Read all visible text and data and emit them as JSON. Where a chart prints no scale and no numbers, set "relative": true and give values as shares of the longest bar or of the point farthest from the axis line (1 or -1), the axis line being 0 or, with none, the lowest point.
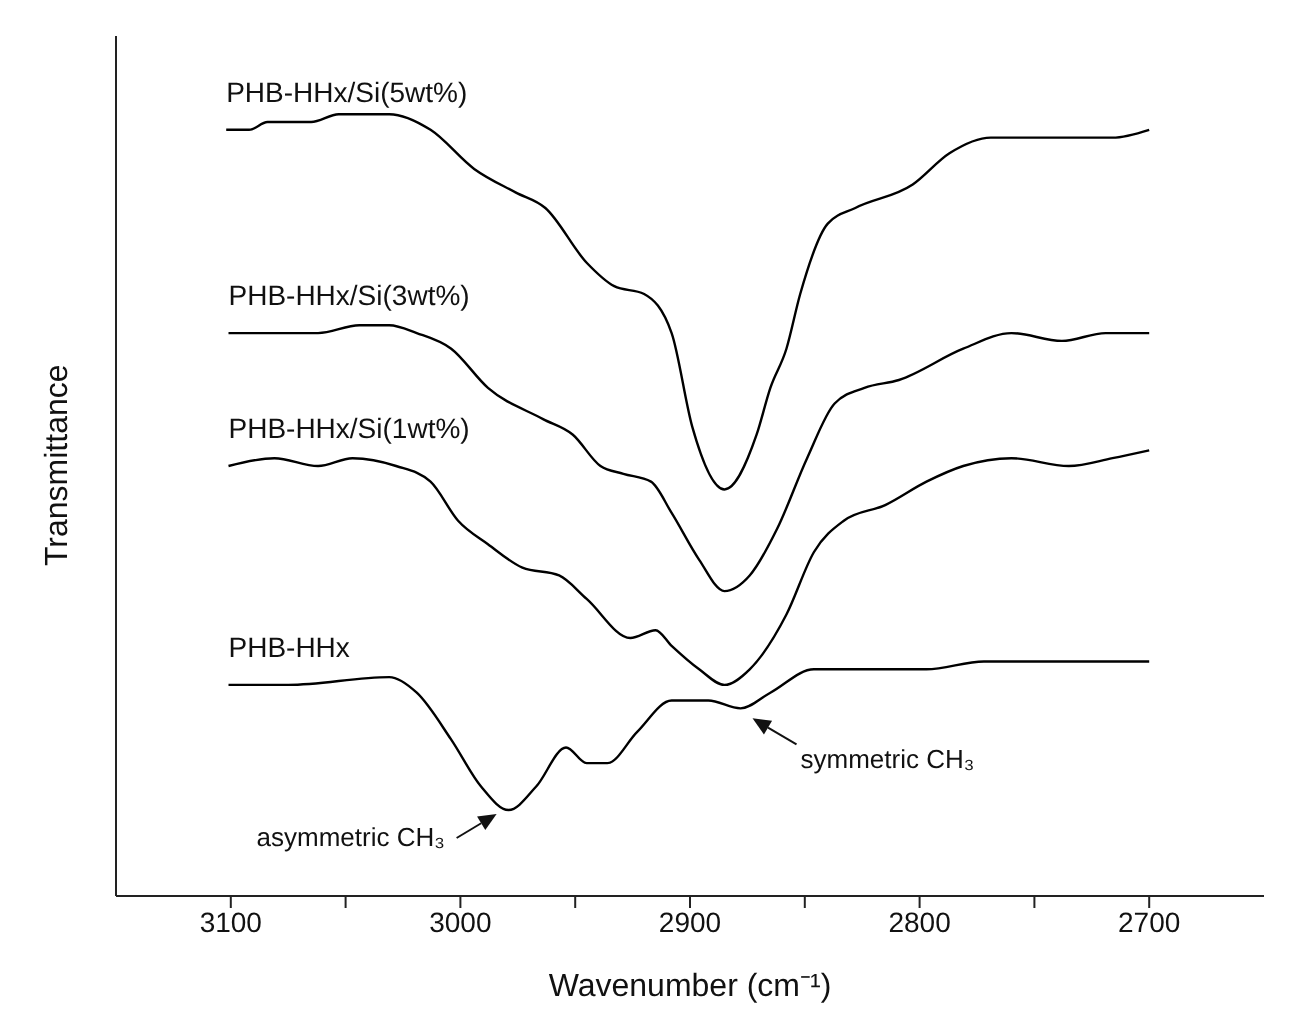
{
  "chart_data": {
    "type": "line",
    "relative": true,
    "xlabel": "Wavenumber (cm⁻¹)",
    "ylabel": "Transmittance",
    "xlim": [
      3150,
      2650
    ],
    "xticks": [
      3100,
      {
        "value": 3050,
        "label": null
      },
      3000,
      {
        "value": 2950,
        "label": null
      },
      2900,
      {
        "value": 2850,
        "label": null
      },
      2800,
      {
        "value": 2750,
        "label": null
      },
      2700
    ],
    "grid": false,
    "legend": false,
    "marker": "none",
    "line_style": "solid",
    "series": [
      {
        "name": "PHB-HHx/Si(5wt%)",
        "color": "#000000",
        "x": [
          3102,
          3092,
          3084,
          3065,
          3053,
          3031,
          3013,
          2994,
          2976,
          2963,
          2945,
          2933,
          2920,
          2908,
          2899,
          2885,
          2871,
          2865,
          2858,
          2852,
          2840,
          2828,
          2803,
          2787,
          2769,
          2747,
          2735,
          2716,
          2700
        ],
        "values": [
          0.98,
          0.98,
          0.99,
          0.99,
          1.0,
          1.0,
          0.98,
          0.93,
          0.9,
          0.88,
          0.81,
          0.78,
          0.77,
          0.72,
          0.6,
          0.52,
          0.59,
          0.65,
          0.7,
          0.77,
          0.86,
          0.88,
          0.91,
          0.95,
          0.97,
          0.97,
          0.97,
          0.97,
          0.98
        ]
      },
      {
        "name": "PHB-HHx/Si(3wt%)",
        "color": "#000000",
        "x": [
          3101,
          3062,
          3044,
          3031,
          3019,
          3004,
          2988,
          2964,
          2951,
          2939,
          2929,
          2917,
          2908,
          2896,
          2885,
          2874,
          2862,
          2849,
          2837,
          2824,
          2809,
          2781,
          2760,
          2738,
          2719,
          2700
        ],
        "values": [
          0.72,
          0.72,
          0.73,
          0.73,
          0.72,
          0.7,
          0.65,
          0.61,
          0.59,
          0.55,
          0.54,
          0.53,
          0.49,
          0.43,
          0.39,
          0.41,
          0.47,
          0.56,
          0.63,
          0.65,
          0.66,
          0.7,
          0.72,
          0.71,
          0.72,
          0.72
        ]
      },
      {
        "name": "PHB-HHx/Si(1wt%)",
        "color": "#000000",
        "x": [
          3101,
          3081,
          3062,
          3047,
          3028,
          3013,
          3001,
          2988,
          2973,
          2957,
          2945,
          2926,
          2915,
          2908,
          2896,
          2885,
          2874,
          2858,
          2846,
          2833,
          2815,
          2797,
          2781,
          2760,
          2735,
          2716,
          2700
        ],
        "values": [
          0.55,
          0.56,
          0.55,
          0.56,
          0.55,
          0.53,
          0.48,
          0.45,
          0.42,
          0.41,
          0.38,
          0.33,
          0.34,
          0.32,
          0.29,
          0.27,
          0.29,
          0.36,
          0.44,
          0.48,
          0.5,
          0.53,
          0.55,
          0.56,
          0.55,
          0.56,
          0.57
        ]
      },
      {
        "name": "PHB-HHx",
        "color": "#000000",
        "x": [
          3101,
          3075,
          3031,
          3019,
          3004,
          2991,
          2979,
          2967,
          2954,
          2945,
          2936,
          2923,
          2908,
          2892,
          2878,
          2865,
          2846,
          2797,
          2772,
          2735,
          2700
        ],
        "values": [
          0.27,
          0.27,
          0.28,
          0.26,
          0.2,
          0.14,
          0.11,
          0.14,
          0.19,
          0.17,
          0.17,
          0.21,
          0.25,
          0.25,
          0.24,
          0.26,
          0.29,
          0.29,
          0.3,
          0.3,
          0.3
        ]
      }
    ],
    "annotations": [
      {
        "text": "asymmetric CH₃",
        "x": 2979,
        "y": 0.11
      },
      {
        "text": "symmetric CH₃",
        "x": 2878,
        "y": 0.24
      }
    ]
  }
}
